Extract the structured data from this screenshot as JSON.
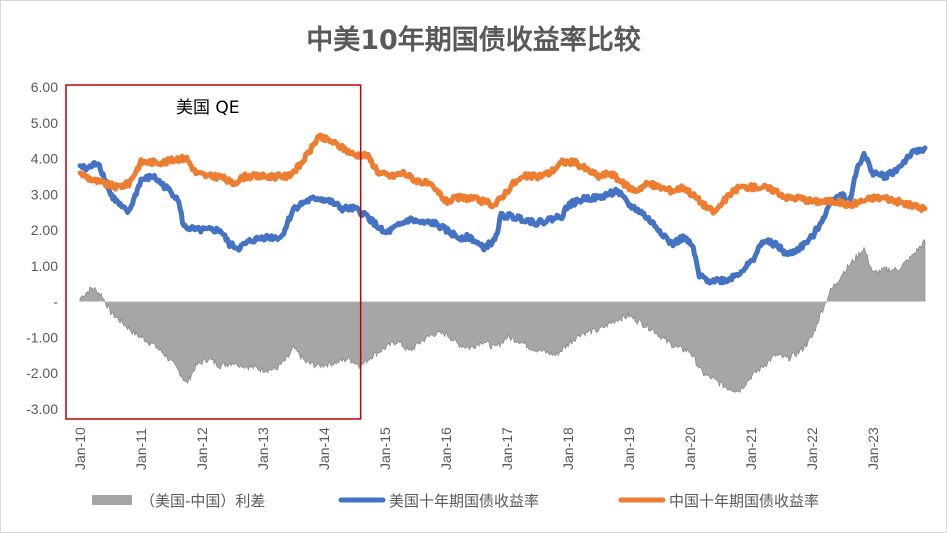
{
  "chart_data": {
    "type": "line",
    "title": "中美10年期国债收益率比较",
    "ylim": [
      -3.0,
      6.0
    ],
    "y_ticks": [
      "6.00",
      "5.00",
      "4.00",
      "3.00",
      "2.00",
      "1.00",
      "-",
      "-1.00",
      "-2.00",
      "-3.00"
    ],
    "x_ticks": [
      "Jan-10",
      "Jan-11",
      "Jan-12",
      "Jan-13",
      "Jan-14",
      "Jan-15",
      "Jan-16",
      "Jan-17",
      "Jan-18",
      "Jan-19",
      "Jan-20",
      "Jan-21",
      "Jan-22",
      "Jan-23"
    ],
    "x_range": [
      2010.0,
      2023.85
    ],
    "annotation": {
      "label": "美国 QE",
      "x_start": 2010.0,
      "x_end": 2014.6
    },
    "series": [
      {
        "name": "（美国-中国）利差",
        "kind": "area",
        "color": "#a6a6a6",
        "points": [
          [
            2010.0,
            0.1
          ],
          [
            2010.2,
            0.4
          ],
          [
            2010.35,
            0.2
          ],
          [
            2010.5,
            -0.3
          ],
          [
            2010.7,
            -0.6
          ],
          [
            2010.9,
            -0.9
          ],
          [
            2011.0,
            -1.0
          ],
          [
            2011.2,
            -1.2
          ],
          [
            2011.4,
            -1.5
          ],
          [
            2011.6,
            -1.9
          ],
          [
            2011.75,
            -2.3
          ],
          [
            2011.9,
            -1.8
          ],
          [
            2012.1,
            -1.6
          ],
          [
            2012.3,
            -1.8
          ],
          [
            2012.5,
            -1.7
          ],
          [
            2012.7,
            -1.8
          ],
          [
            2013.0,
            -1.9
          ],
          [
            2013.2,
            -1.9
          ],
          [
            2013.4,
            -1.6
          ],
          [
            2013.5,
            -1.3
          ],
          [
            2013.7,
            -1.7
          ],
          [
            2013.9,
            -1.8
          ],
          [
            2014.2,
            -1.7
          ],
          [
            2014.4,
            -1.6
          ],
          [
            2014.6,
            -1.8
          ],
          [
            2014.8,
            -1.5
          ],
          [
            2015.0,
            -1.3
          ],
          [
            2015.2,
            -1.1
          ],
          [
            2015.4,
            -1.4
          ],
          [
            2015.6,
            -1.1
          ],
          [
            2015.8,
            -0.9
          ],
          [
            2016.0,
            -0.9
          ],
          [
            2016.2,
            -1.2
          ],
          [
            2016.4,
            -1.3
          ],
          [
            2016.6,
            -1.1
          ],
          [
            2016.8,
            -1.3
          ],
          [
            2017.0,
            -1.0
          ],
          [
            2017.2,
            -1.1
          ],
          [
            2017.4,
            -1.3
          ],
          [
            2017.6,
            -1.4
          ],
          [
            2017.8,
            -1.5
          ],
          [
            2018.0,
            -1.2
          ],
          [
            2018.2,
            -0.9
          ],
          [
            2018.5,
            -0.8
          ],
          [
            2018.8,
            -0.5
          ],
          [
            2019.0,
            -0.4
          ],
          [
            2019.2,
            -0.6
          ],
          [
            2019.4,
            -0.8
          ],
          [
            2019.6,
            -1.1
          ],
          [
            2019.8,
            -1.3
          ],
          [
            2020.0,
            -1.4
          ],
          [
            2020.2,
            -2.0
          ],
          [
            2020.4,
            -2.2
          ],
          [
            2020.6,
            -2.4
          ],
          [
            2020.8,
            -2.5
          ],
          [
            2021.0,
            -2.1
          ],
          [
            2021.2,
            -1.8
          ],
          [
            2021.4,
            -1.5
          ],
          [
            2021.6,
            -1.6
          ],
          [
            2021.8,
            -1.4
          ],
          [
            2022.0,
            -1.0
          ],
          [
            2022.15,
            -0.3
          ],
          [
            2022.3,
            0.3
          ],
          [
            2022.5,
            0.8
          ],
          [
            2022.7,
            1.2
          ],
          [
            2022.85,
            1.5
          ],
          [
            2023.0,
            0.8
          ],
          [
            2023.2,
            0.9
          ],
          [
            2023.4,
            0.9
          ],
          [
            2023.6,
            1.2
          ],
          [
            2023.85,
            1.7
          ]
        ]
      },
      {
        "name": "美国十年期国债收益率",
        "kind": "line",
        "color": "#4472c4",
        "points": [
          [
            2010.0,
            3.8
          ],
          [
            2010.1,
            3.7
          ],
          [
            2010.3,
            3.9
          ],
          [
            2010.5,
            3.0
          ],
          [
            2010.7,
            2.6
          ],
          [
            2010.8,
            2.5
          ],
          [
            2011.0,
            3.4
          ],
          [
            2011.2,
            3.5
          ],
          [
            2011.4,
            3.2
          ],
          [
            2011.6,
            2.9
          ],
          [
            2011.7,
            2.1
          ],
          [
            2011.9,
            2.0
          ],
          [
            2012.1,
            2.0
          ],
          [
            2012.3,
            2.0
          ],
          [
            2012.45,
            1.6
          ],
          [
            2012.6,
            1.5
          ],
          [
            2012.8,
            1.7
          ],
          [
            2013.0,
            1.8
          ],
          [
            2013.3,
            1.8
          ],
          [
            2013.5,
            2.6
          ],
          [
            2013.7,
            2.8
          ],
          [
            2013.9,
            2.9
          ],
          [
            2014.1,
            2.8
          ],
          [
            2014.3,
            2.6
          ],
          [
            2014.5,
            2.6
          ],
          [
            2014.7,
            2.4
          ],
          [
            2015.0,
            1.9
          ],
          [
            2015.2,
            2.1
          ],
          [
            2015.4,
            2.3
          ],
          [
            2015.6,
            2.2
          ],
          [
            2015.8,
            2.2
          ],
          [
            2016.0,
            2.0
          ],
          [
            2016.2,
            1.8
          ],
          [
            2016.4,
            1.8
          ],
          [
            2016.6,
            1.5
          ],
          [
            2016.8,
            1.7
          ],
          [
            2016.9,
            2.4
          ],
          [
            2017.0,
            2.4
          ],
          [
            2017.3,
            2.3
          ],
          [
            2017.5,
            2.2
          ],
          [
            2017.7,
            2.3
          ],
          [
            2017.9,
            2.4
          ],
          [
            2018.0,
            2.7
          ],
          [
            2018.3,
            2.9
          ],
          [
            2018.5,
            2.9
          ],
          [
            2018.8,
            3.1
          ],
          [
            2019.0,
            2.7
          ],
          [
            2019.2,
            2.5
          ],
          [
            2019.5,
            2.0
          ],
          [
            2019.7,
            1.6
          ],
          [
            2019.9,
            1.8
          ],
          [
            2020.05,
            1.5
          ],
          [
            2020.15,
            0.7
          ],
          [
            2020.3,
            0.6
          ],
          [
            2020.6,
            0.6
          ],
          [
            2020.8,
            0.8
          ],
          [
            2021.0,
            1.1
          ],
          [
            2021.2,
            1.7
          ],
          [
            2021.4,
            1.6
          ],
          [
            2021.6,
            1.3
          ],
          [
            2021.8,
            1.5
          ],
          [
            2022.0,
            1.8
          ],
          [
            2022.2,
            2.4
          ],
          [
            2022.35,
            2.9
          ],
          [
            2022.5,
            3.0
          ],
          [
            2022.6,
            2.7
          ],
          [
            2022.75,
            3.8
          ],
          [
            2022.85,
            4.1
          ],
          [
            2023.0,
            3.6
          ],
          [
            2023.2,
            3.5
          ],
          [
            2023.4,
            3.7
          ],
          [
            2023.6,
            4.1
          ],
          [
            2023.85,
            4.3
          ]
        ]
      },
      {
        "name": "中国十年期国债收益率",
        "kind": "line",
        "color": "#ed7d31",
        "points": [
          [
            2010.0,
            3.6
          ],
          [
            2010.2,
            3.4
          ],
          [
            2010.4,
            3.3
          ],
          [
            2010.6,
            3.2
          ],
          [
            2010.8,
            3.3
          ],
          [
            2011.0,
            3.9
          ],
          [
            2011.2,
            3.9
          ],
          [
            2011.4,
            3.9
          ],
          [
            2011.6,
            4.0
          ],
          [
            2011.75,
            4.0
          ],
          [
            2011.9,
            3.6
          ],
          [
            2012.1,
            3.5
          ],
          [
            2012.3,
            3.5
          ],
          [
            2012.5,
            3.3
          ],
          [
            2012.7,
            3.5
          ],
          [
            2013.0,
            3.5
          ],
          [
            2013.2,
            3.5
          ],
          [
            2013.4,
            3.5
          ],
          [
            2013.6,
            3.8
          ],
          [
            2013.8,
            4.3
          ],
          [
            2013.9,
            4.6
          ],
          [
            2014.1,
            4.5
          ],
          [
            2014.3,
            4.3
          ],
          [
            2014.5,
            4.1
          ],
          [
            2014.7,
            4.1
          ],
          [
            2014.9,
            3.6
          ],
          [
            2015.1,
            3.5
          ],
          [
            2015.3,
            3.6
          ],
          [
            2015.5,
            3.4
          ],
          [
            2015.7,
            3.3
          ],
          [
            2015.9,
            3.0
          ],
          [
            2016.0,
            2.8
          ],
          [
            2016.2,
            2.9
          ],
          [
            2016.4,
            2.9
          ],
          [
            2016.6,
            2.8
          ],
          [
            2016.8,
            2.7
          ],
          [
            2016.95,
            3.0
          ],
          [
            2017.1,
            3.3
          ],
          [
            2017.3,
            3.5
          ],
          [
            2017.5,
            3.5
          ],
          [
            2017.7,
            3.6
          ],
          [
            2017.9,
            3.9
          ],
          [
            2018.1,
            3.9
          ],
          [
            2018.3,
            3.7
          ],
          [
            2018.5,
            3.5
          ],
          [
            2018.7,
            3.6
          ],
          [
            2018.9,
            3.3
          ],
          [
            2019.1,
            3.1
          ],
          [
            2019.3,
            3.3
          ],
          [
            2019.5,
            3.2
          ],
          [
            2019.7,
            3.1
          ],
          [
            2019.9,
            3.2
          ],
          [
            2020.1,
            2.9
          ],
          [
            2020.3,
            2.6
          ],
          [
            2020.4,
            2.5
          ],
          [
            2020.6,
            2.9
          ],
          [
            2020.8,
            3.2
          ],
          [
            2021.0,
            3.2
          ],
          [
            2021.2,
            3.2
          ],
          [
            2021.4,
            3.1
          ],
          [
            2021.6,
            2.9
          ],
          [
            2021.8,
            2.9
          ],
          [
            2022.0,
            2.8
          ],
          [
            2022.2,
            2.8
          ],
          [
            2022.4,
            2.8
          ],
          [
            2022.6,
            2.7
          ],
          [
            2022.8,
            2.8
          ],
          [
            2023.0,
            2.9
          ],
          [
            2023.2,
            2.9
          ],
          [
            2023.4,
            2.8
          ],
          [
            2023.6,
            2.7
          ],
          [
            2023.85,
            2.6
          ]
        ]
      }
    ]
  }
}
